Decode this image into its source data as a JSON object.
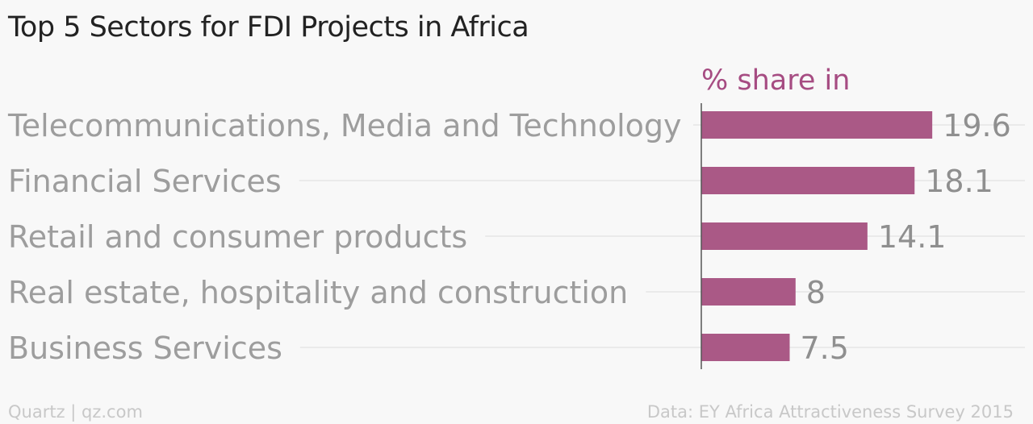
{
  "header": {
    "title": "Top 5 Sectors for FDI Projects in Africa"
  },
  "footer": {
    "credit": "Quartz | qz.com",
    "source": "Data: EY Africa Attractiveness Survey 2015"
  },
  "colors": {
    "bar": "#aa5986",
    "series_label": "#a64c82",
    "category_label": "#9d9d9d",
    "value_label": "#8f8f8f",
    "gridline": "#e6e6e6",
    "axis": "#555555",
    "background": "#f8f8f8"
  },
  "chart_data": {
    "type": "bar",
    "orientation": "horizontal",
    "title": "Top 5 Sectors for FDI Projects in Africa",
    "categories": [
      "Telecommunications, Media and Technology",
      "Financial Services",
      "Retail and consumer products",
      "Real estate, hospitality and construction",
      "Business Services"
    ],
    "series": [
      {
        "name": "% share in",
        "values": [
          19.6,
          18.1,
          14.1,
          8,
          7.5
        ]
      }
    ],
    "value_labels": [
      "19.6",
      "18.1",
      "14.1",
      "8",
      "7.5"
    ],
    "xlim": [
      0,
      20
    ],
    "grid": true,
    "legend": "none"
  }
}
